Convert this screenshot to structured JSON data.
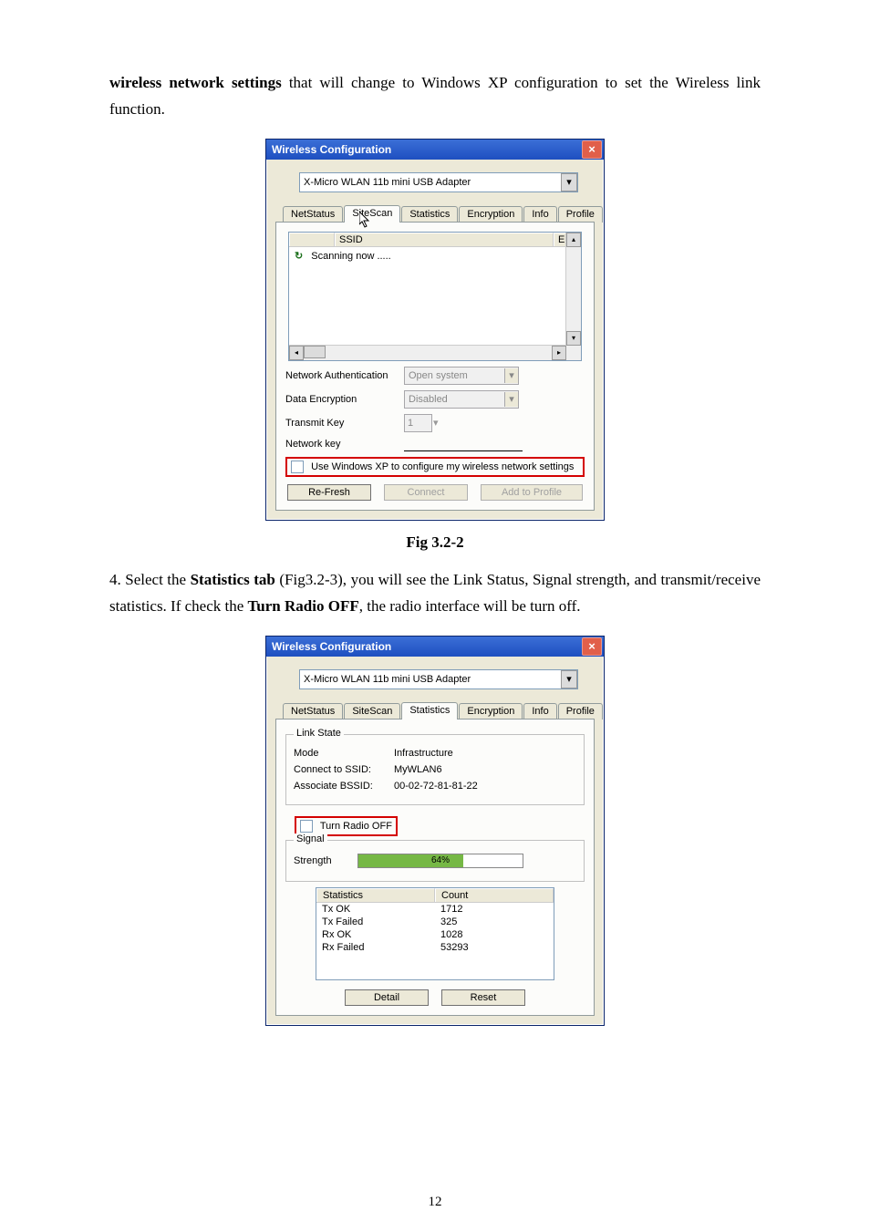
{
  "page_number": "12",
  "intro_para": {
    "prefix": "",
    "bold": "wireless network settings",
    "rest": " that will change to Windows XP configuration to set the Wireless link function."
  },
  "fig1_caption": "Fig 3.2-2",
  "para2": {
    "prefix": "4. Select the ",
    "bold1": "Statistics tab",
    "mid": " (Fig3.2-3), you will see the Link Status, Signal strength, and transmit/receive statistics. If check the ",
    "bold2": "Turn Radio OFF",
    "rest": ", the radio interface will be turn off."
  },
  "dialog_common": {
    "title": "Wireless Configuration",
    "close_glyph": "×",
    "adapter": "X-Micro WLAN 11b mini USB Adapter",
    "dd_glyph": "▾",
    "tabs": [
      "NetStatus",
      "SiteScan",
      "Statistics",
      "Encryption",
      "Info",
      "Profile"
    ]
  },
  "dialog1": {
    "list_cols": {
      "ssid": "SSID",
      "e": "E"
    },
    "scanning": "Scanning now .....",
    "net_auth_label": "Network Authentication",
    "net_auth_value": "Open system",
    "data_enc_label": "Data Encryption",
    "data_enc_value": "Disabled",
    "tx_key_label": "Transmit Key",
    "tx_key_value": "1",
    "net_key_label": "Network key",
    "use_xp_label": "Use Windows XP to configure my wireless network settings",
    "buttons": {
      "refresh": "Re-Fresh",
      "connect": "Connect",
      "add": "Add to Profile"
    }
  },
  "dialog2": {
    "link_state_title": "Link State",
    "mode_label": "Mode",
    "mode_value": "Infrastructure",
    "ssid_label": "Connect to SSID:",
    "ssid_value": "MyWLAN6",
    "bssid_label": "Associate BSSID:",
    "bssid_value": "00-02-72-81-81-22",
    "turn_radio_off": "Turn Radio OFF",
    "signal_title": "Signal",
    "strength_label": "Strength",
    "strength_pct_text": "64%",
    "strength_pct_width": 64,
    "progress_fill_color": "#76b845",
    "stats_cols": {
      "name": "Statistics",
      "count": "Count"
    },
    "stats_rows": [
      {
        "name": "Tx OK",
        "count": "1712"
      },
      {
        "name": "Tx Failed",
        "count": "325"
      },
      {
        "name": "Rx OK",
        "count": "1028"
      },
      {
        "name": "Rx Failed",
        "count": "53293"
      }
    ],
    "buttons": {
      "detail": "Detail",
      "reset": "Reset"
    }
  }
}
